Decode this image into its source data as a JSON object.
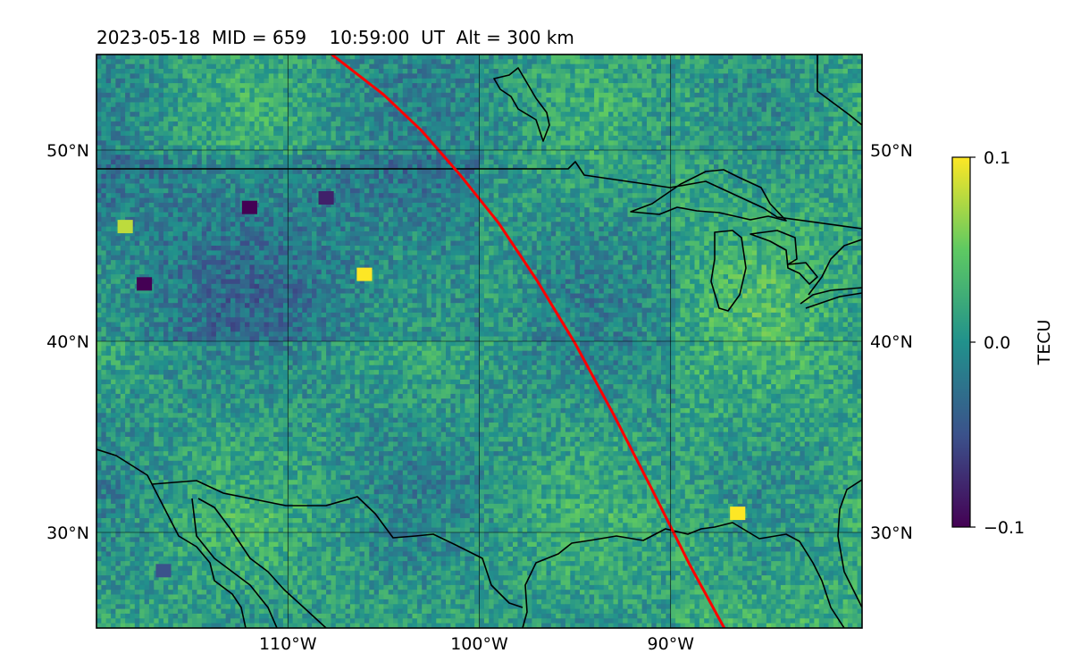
{
  "title": "2023-05-18  MID = 659    10:59:00  UT  Alt = 300 km",
  "chart_data": {
    "type": "heatmap",
    "description_units": "TECU",
    "xlim": [
      -120,
      -80
    ],
    "ylim": [
      25,
      55
    ],
    "xticks": [
      {
        "value": -110,
        "label": "110°W"
      },
      {
        "value": -100,
        "label": "100°W"
      },
      {
        "value": -90,
        "label": "90°W"
      }
    ],
    "yticks": [
      {
        "value": 50,
        "label": "50°N"
      },
      {
        "value": 40,
        "label": "40°N"
      },
      {
        "value": 30,
        "label": "30°N"
      }
    ],
    "grid": true,
    "colorbar": {
      "label": "TECU",
      "colormap": "viridis",
      "range": [
        -0.1,
        0.1
      ],
      "ticks": [
        {
          "value": 0.1,
          "label": "0.1"
        },
        {
          "value": 0.0,
          "label": "0.0"
        },
        {
          "value": -0.1,
          "label": "−0.1"
        }
      ]
    },
    "track": {
      "color": "#ff0000",
      "points": [
        [
          -107.7,
          55
        ],
        [
          -105,
          52.9
        ],
        [
          -103,
          51
        ],
        [
          -101,
          48.7
        ],
        [
          -99,
          46.2
        ],
        [
          -97,
          43.2
        ],
        [
          -95,
          39.9
        ],
        [
          -93,
          36.2
        ],
        [
          -91,
          32.3
        ],
        [
          -89,
          28.3
        ],
        [
          -87.2,
          25
        ]
      ]
    },
    "notable_cells": [
      {
        "lon": -117.5,
        "lat": 43,
        "value": -0.1
      },
      {
        "lon": -112,
        "lat": 47,
        "value": -0.1
      },
      {
        "lon": -108,
        "lat": 47.5,
        "value": -0.08
      },
      {
        "lon": -106,
        "lat": 43.5,
        "value": 0.1
      },
      {
        "lon": -118.5,
        "lat": 46,
        "value": 0.08
      },
      {
        "lon": -86.5,
        "lat": 31,
        "value": 0.1
      },
      {
        "lon": -116.5,
        "lat": 28,
        "value": -0.05
      }
    ]
  }
}
